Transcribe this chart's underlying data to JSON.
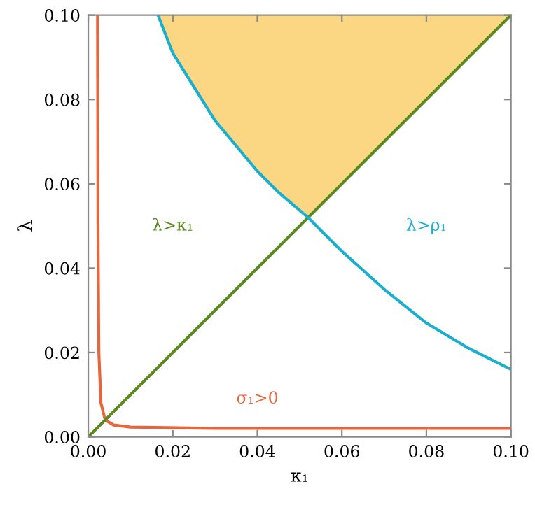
{
  "chart_data": {
    "type": "line",
    "xlabel": "κ₁",
    "ylabel": "λ",
    "xlim": [
      0,
      0.1
    ],
    "ylim": [
      0,
      0.1
    ],
    "xticks": [
      {
        "value": 0,
        "label": "0.00"
      },
      {
        "value": 0.02,
        "label": "0.02"
      },
      {
        "value": 0.04,
        "label": "0.04"
      },
      {
        "value": 0.06,
        "label": "0.06"
      },
      {
        "value": 0.08,
        "label": "0.08"
      },
      {
        "value": 0.1,
        "label": "0.10"
      }
    ],
    "yticks": [
      {
        "value": 0,
        "label": "0.00"
      },
      {
        "value": 0.02,
        "label": "0.02"
      },
      {
        "value": 0.04,
        "label": "0.04"
      },
      {
        "value": 0.06,
        "label": "0.06"
      },
      {
        "value": 0.08,
        "label": "0.08"
      },
      {
        "value": 0.1,
        "label": "0.10"
      }
    ],
    "grid": false,
    "series": [
      {
        "type": "area",
        "color": "#fbd784",
        "x": [
          0.0165,
          0.02,
          0.03,
          0.04,
          0.045,
          0.052,
          0.06,
          0.07,
          0.08,
          0.09,
          0.1
        ],
        "values": [
          0.1,
          0.091,
          0.075,
          0.063,
          0.058,
          0.052,
          0.06,
          0.07,
          0.08,
          0.09,
          0.1
        ]
      },
      {
        "color": "#e8643a",
        "x": [
          0.0022,
          0.0023,
          0.0025,
          0.003,
          0.004,
          0.006,
          0.01,
          0.03,
          0.1
        ],
        "values": [
          0.1,
          0.05,
          0.02,
          0.008,
          0.004,
          0.0028,
          0.0023,
          0.002,
          0.002
        ]
      },
      {
        "color": "#5a8a1e",
        "x": [
          0,
          0.1
        ],
        "values": [
          0,
          0.1
        ]
      },
      {
        "color": "#1aaed0",
        "x": [
          0.0165,
          0.02,
          0.03,
          0.04,
          0.045,
          0.052,
          0.06,
          0.07,
          0.08,
          0.09,
          0.1
        ],
        "values": [
          0.1,
          0.091,
          0.075,
          0.063,
          0.058,
          0.052,
          0.044,
          0.035,
          0.027,
          0.021,
          0.016
        ]
      }
    ],
    "annotations": [
      "σ₁>0",
      "λ>κ₁",
      "λ>ρ₁"
    ]
  }
}
